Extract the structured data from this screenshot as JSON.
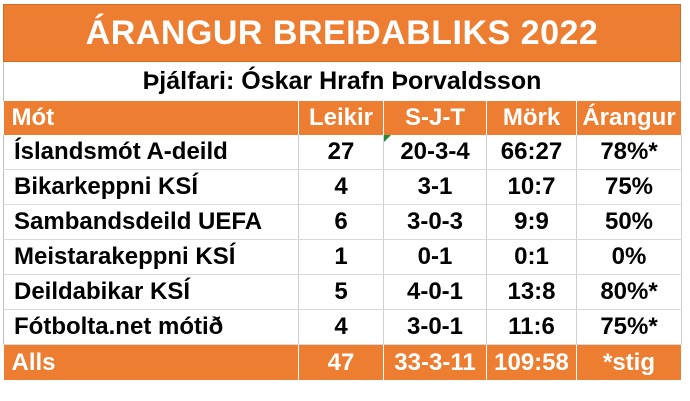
{
  "title": "ÁRANGUR BREIÐABLIKS 2022",
  "coach": "Þjálfari: Óskar Hrafn Þorvaldsson",
  "table": {
    "headers": [
      "Mót",
      "Leikir",
      "S-J-T",
      "Mörk",
      "Árangur"
    ],
    "rows": [
      [
        "Íslandsmót A-deild",
        "27",
        "20-3-4",
        "66:27",
        "78%*"
      ],
      [
        "Bikarkeppni KSÍ",
        "4",
        "3-1",
        "10:7",
        "75%"
      ],
      [
        "Sambandsdeild UEFA",
        "6",
        "3-0-3",
        "9:9",
        "50%"
      ],
      [
        "Meistarakeppni KSÍ",
        "1",
        "0-1",
        "0:1",
        "0%"
      ],
      [
        "Deildabikar KSÍ",
        "5",
        "4-0-1",
        "13:8",
        "80%*"
      ],
      [
        "Fótbolta.net mótið",
        "4",
        "3-0-1",
        "11:6",
        "75%*"
      ]
    ],
    "total": [
      "Alls",
      "47",
      "33-3-11",
      "109:58",
      "*stig"
    ]
  },
  "colors": {
    "accent": "#ed7d31",
    "header_text": "#ffffff",
    "comment_marker": "#1e8a3a"
  }
}
